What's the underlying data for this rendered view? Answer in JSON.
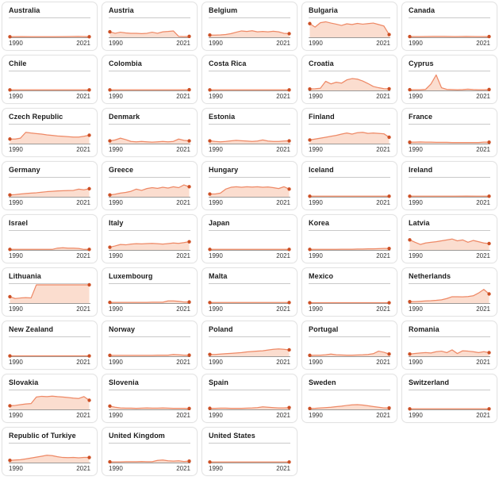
{
  "meta": {
    "x_start_label": "1990",
    "x_end_label": "2021"
  },
  "style": {
    "line_color": "#ee8966",
    "fill_color": "#fbddcf",
    "dot_color": "#cc4f24",
    "axis_color": "#8f8f8f",
    "rule_color": "#c9c9c9",
    "card_border": "#e3e3e3"
  },
  "chart_data": [
    {
      "type": "area",
      "country": "Australia",
      "x_range": [
        1990,
        2021
      ],
      "ylim": [
        0,
        1
      ],
      "values": [
        0.03,
        0.04,
        0.03,
        0.03,
        0.03,
        0.04,
        0.05,
        0.03
      ]
    },
    {
      "type": "area",
      "country": "Austria",
      "x_range": [
        1990,
        2021
      ],
      "ylim": [
        0,
        1
      ],
      "values": [
        0.3,
        0.22,
        0.28,
        0.24,
        0.22,
        0.22,
        0.2,
        0.22,
        0.28,
        0.22,
        0.3,
        0.32,
        0.35,
        0.05,
        0.04,
        0.05
      ]
    },
    {
      "type": "area",
      "country": "Belgium",
      "x_range": [
        1990,
        2021
      ],
      "ylim": [
        0,
        1
      ],
      "values": [
        0.12,
        0.12,
        0.13,
        0.15,
        0.2,
        0.28,
        0.35,
        0.32,
        0.36,
        0.3,
        0.32,
        0.3,
        0.33,
        0.3,
        0.22,
        0.2
      ]
    },
    {
      "type": "area",
      "country": "Bulgaria",
      "x_range": [
        1990,
        2021
      ],
      "ylim": [
        0,
        1
      ],
      "values": [
        0.75,
        0.56,
        0.8,
        0.85,
        0.78,
        0.72,
        0.65,
        0.74,
        0.7,
        0.76,
        0.72,
        0.75,
        0.78,
        0.7,
        0.62,
        0.15
      ]
    },
    {
      "type": "area",
      "country": "Canada",
      "x_range": [
        1990,
        2021
      ],
      "ylim": [
        0,
        1
      ],
      "values": [
        0.04,
        0.04,
        0.05,
        0.05,
        0.04,
        0.05,
        0.04,
        0.04
      ]
    },
    {
      "type": "area",
      "country": "Chile",
      "x_range": [
        1990,
        2021
      ],
      "ylim": [
        0,
        1
      ],
      "values": [
        0.03,
        0.03,
        0.03,
        0.03,
        0.03,
        0.03,
        0.03,
        0.03
      ]
    },
    {
      "type": "area",
      "country": "Colombia",
      "x_range": [
        1990,
        2021
      ],
      "ylim": [
        0,
        1
      ],
      "values": [
        0.03,
        0.03,
        0.03,
        0.03,
        0.03,
        0.03,
        0.03,
        0.04
      ]
    },
    {
      "type": "area",
      "country": "Costa Rica",
      "x_range": [
        1990,
        2021
      ],
      "ylim": [
        0,
        1
      ],
      "values": [
        0.03,
        0.03,
        0.03,
        0.03,
        0.03,
        0.03,
        0.03,
        0.03
      ]
    },
    {
      "type": "area",
      "country": "Croatia",
      "x_range": [
        1990,
        2021
      ],
      "ylim": [
        0,
        1
      ],
      "values": [
        0.08,
        0.09,
        0.12,
        0.5,
        0.36,
        0.45,
        0.4,
        0.58,
        0.65,
        0.62,
        0.52,
        0.38,
        0.22,
        0.15,
        0.1,
        0.09
      ]
    },
    {
      "type": "area",
      "country": "Cyprus",
      "x_range": [
        1990,
        2021
      ],
      "ylim": [
        0,
        1
      ],
      "values": [
        0.04,
        0.04,
        0.04,
        0.06,
        0.35,
        0.85,
        0.15,
        0.06,
        0.05,
        0.04,
        0.05,
        0.07,
        0.05,
        0.04,
        0.04,
        0.05
      ]
    },
    {
      "type": "area",
      "country": "Czech Republic",
      "x_range": [
        1990,
        2021
      ],
      "ylim": [
        0,
        1
      ],
      "values": [
        0.25,
        0.25,
        0.3,
        0.62,
        0.58,
        0.55,
        0.52,
        0.48,
        0.45,
        0.42,
        0.4,
        0.38,
        0.36,
        0.36,
        0.4,
        0.46
      ]
    },
    {
      "type": "area",
      "country": "Denmark",
      "x_range": [
        1990,
        2021
      ],
      "ylim": [
        0,
        1
      ],
      "values": [
        0.15,
        0.2,
        0.3,
        0.22,
        0.12,
        0.1,
        0.12,
        0.1,
        0.08,
        0.1,
        0.12,
        0.1,
        0.12,
        0.25,
        0.18,
        0.15
      ]
    },
    {
      "type": "area",
      "country": "Estonia",
      "x_range": [
        1990,
        2021
      ],
      "ylim": [
        0,
        1
      ],
      "values": [
        0.15,
        0.12,
        0.1,
        0.12,
        0.15,
        0.18,
        0.16,
        0.14,
        0.12,
        0.14,
        0.2,
        0.14,
        0.12,
        0.12,
        0.14,
        0.15
      ]
    },
    {
      "type": "area",
      "country": "Finland",
      "x_range": [
        1990,
        2021
      ],
      "ylim": [
        0,
        1
      ],
      "values": [
        0.2,
        0.25,
        0.3,
        0.35,
        0.4,
        0.45,
        0.52,
        0.58,
        0.52,
        0.6,
        0.62,
        0.56,
        0.58,
        0.56,
        0.54,
        0.35
      ]
    },
    {
      "type": "area",
      "country": "France",
      "x_range": [
        1990,
        2021
      ],
      "ylim": [
        0,
        1
      ],
      "values": [
        0.08,
        0.08,
        0.09,
        0.08,
        0.08,
        0.07,
        0.07,
        0.07,
        0.06,
        0.06,
        0.06,
        0.06,
        0.06,
        0.06,
        0.08,
        0.08
      ]
    },
    {
      "type": "area",
      "country": "Germany",
      "x_range": [
        1990,
        2021
      ],
      "ylim": [
        0,
        1
      ],
      "values": [
        0.1,
        0.12,
        0.15,
        0.18,
        0.2,
        0.22,
        0.25,
        0.28,
        0.3,
        0.32,
        0.33,
        0.34,
        0.35,
        0.42,
        0.38,
        0.44
      ]
    },
    {
      "type": "area",
      "country": "Greece",
      "x_range": [
        1990,
        2021
      ],
      "ylim": [
        0,
        1
      ],
      "values": [
        0.1,
        0.14,
        0.2,
        0.24,
        0.3,
        0.42,
        0.35,
        0.45,
        0.5,
        0.46,
        0.52,
        0.48,
        0.55,
        0.5,
        0.65,
        0.55
      ]
    },
    {
      "type": "area",
      "country": "Hungary",
      "x_range": [
        1990,
        2021
      ],
      "ylim": [
        0,
        1
      ],
      "values": [
        0.15,
        0.15,
        0.2,
        0.42,
        0.52,
        0.55,
        0.52,
        0.55,
        0.53,
        0.55,
        0.52,
        0.54,
        0.5,
        0.45,
        0.55,
        0.42
      ]
    },
    {
      "type": "area",
      "country": "Iceland",
      "x_range": [
        1990,
        2021
      ],
      "ylim": [
        0,
        1
      ],
      "values": [
        0.03,
        0.03,
        0.03,
        0.03,
        0.03,
        0.03,
        0.03,
        0.03
      ]
    },
    {
      "type": "area",
      "country": "Ireland",
      "x_range": [
        1990,
        2021
      ],
      "ylim": [
        0,
        1
      ],
      "values": [
        0.03,
        0.03,
        0.03,
        0.03,
        0.03,
        0.04,
        0.03,
        0.03
      ]
    },
    {
      "type": "area",
      "country": "Israel",
      "x_range": [
        1990,
        2021
      ],
      "ylim": [
        0,
        1
      ],
      "values": [
        0.03,
        0.03,
        0.03,
        0.03,
        0.03,
        0.03,
        0.03,
        0.03,
        0.03,
        0.1,
        0.12,
        0.1,
        0.1,
        0.08,
        0.03,
        0.03
      ]
    },
    {
      "type": "area",
      "country": "Italy",
      "x_range": [
        1990,
        2021
      ],
      "ylim": [
        0,
        1
      ],
      "values": [
        0.15,
        0.22,
        0.3,
        0.28,
        0.32,
        0.34,
        0.33,
        0.35,
        0.36,
        0.34,
        0.32,
        0.35,
        0.38,
        0.36,
        0.4,
        0.45
      ]
    },
    {
      "type": "area",
      "country": "Japan",
      "x_range": [
        1990,
        2021
      ],
      "ylim": [
        0,
        1
      ],
      "values": [
        0.03,
        0.03,
        0.03,
        0.03,
        0.03,
        0.03,
        0.03,
        0.03
      ]
    },
    {
      "type": "area",
      "country": "Korea",
      "x_range": [
        1990,
        2021
      ],
      "ylim": [
        0,
        1
      ],
      "values": [
        0.03,
        0.03,
        0.03,
        0.03,
        0.03,
        0.03,
        0.04,
        0.04,
        0.04,
        0.05,
        0.05,
        0.06,
        0.06,
        0.07,
        0.08,
        0.08
      ]
    },
    {
      "type": "area",
      "country": "Latvia",
      "x_range": [
        1990,
        2021
      ],
      "ylim": [
        0,
        1
      ],
      "values": [
        0.55,
        0.42,
        0.3,
        0.38,
        0.42,
        0.45,
        0.5,
        0.55,
        0.6,
        0.5,
        0.55,
        0.42,
        0.52,
        0.45,
        0.38,
        0.35
      ]
    },
    {
      "type": "area",
      "country": "Lithuania",
      "x_range": [
        1990,
        2021
      ],
      "ylim": [
        0,
        1
      ],
      "values": [
        0.35,
        0.25,
        0.28,
        0.3,
        0.28,
        1.0,
        1.0,
        1.0,
        1.0,
        1.0,
        1.0,
        1.0,
        1.0,
        1.0,
        1.0,
        1.0
      ]
    },
    {
      "type": "area",
      "country": "Luxembourg",
      "x_range": [
        1990,
        2021
      ],
      "ylim": [
        0,
        1
      ],
      "values": [
        0.04,
        0.04,
        0.04,
        0.04,
        0.04,
        0.04,
        0.04,
        0.04,
        0.05,
        0.05,
        0.05,
        0.12,
        0.12,
        0.1,
        0.06,
        0.06
      ]
    },
    {
      "type": "area",
      "country": "Malta",
      "x_range": [
        1990,
        2021
      ],
      "ylim": [
        0,
        1
      ],
      "values": [
        0.03,
        0.03,
        0.03,
        0.03,
        0.03,
        0.03,
        0.03,
        0.03
      ]
    },
    {
      "type": "area",
      "country": "Mexico",
      "x_range": [
        1990,
        2021
      ],
      "ylim": [
        0,
        1
      ],
      "values": [
        0.02,
        0.02,
        0.02,
        0.02,
        0.02,
        0.02,
        0.02,
        0.02
      ]
    },
    {
      "type": "area",
      "country": "Netherlands",
      "x_range": [
        1990,
        2021
      ],
      "ylim": [
        0,
        1
      ],
      "values": [
        0.08,
        0.08,
        0.1,
        0.12,
        0.13,
        0.15,
        0.18,
        0.25,
        0.35,
        0.35,
        0.34,
        0.36,
        0.4,
        0.55,
        0.75,
        0.5
      ]
    },
    {
      "type": "area",
      "country": "New Zealand",
      "x_range": [
        1990,
        2021
      ],
      "ylim": [
        0,
        1
      ],
      "values": [
        0.02,
        0.02,
        0.02,
        0.02,
        0.02,
        0.02,
        0.02,
        0.02
      ]
    },
    {
      "type": "area",
      "country": "Norway",
      "x_range": [
        1990,
        2021
      ],
      "ylim": [
        0,
        1
      ],
      "values": [
        0.05,
        0.05,
        0.05,
        0.05,
        0.05,
        0.05,
        0.05,
        0.05,
        0.05,
        0.06,
        0.06,
        0.06,
        0.1,
        0.08,
        0.06,
        0.06
      ]
    },
    {
      "type": "area",
      "country": "Poland",
      "x_range": [
        1990,
        2021
      ],
      "ylim": [
        0,
        1
      ],
      "values": [
        0.1,
        0.1,
        0.12,
        0.14,
        0.16,
        0.18,
        0.2,
        0.24,
        0.26,
        0.28,
        0.3,
        0.34,
        0.38,
        0.4,
        0.38,
        0.35
      ]
    },
    {
      "type": "area",
      "country": "Portugal",
      "x_range": [
        1990,
        2021
      ],
      "ylim": [
        0,
        1
      ],
      "values": [
        0.05,
        0.06,
        0.06,
        0.08,
        0.12,
        0.08,
        0.07,
        0.06,
        0.06,
        0.07,
        0.08,
        0.1,
        0.14,
        0.28,
        0.22,
        0.12
      ]
    },
    {
      "type": "area",
      "country": "Romania",
      "x_range": [
        1990,
        2021
      ],
      "ylim": [
        0,
        1
      ],
      "values": [
        0.12,
        0.15,
        0.18,
        0.2,
        0.18,
        0.25,
        0.28,
        0.2,
        0.35,
        0.15,
        0.3,
        0.28,
        0.25,
        0.2,
        0.25,
        0.2
      ]
    },
    {
      "type": "area",
      "country": "Slovakia",
      "x_range": [
        1990,
        2021
      ],
      "ylim": [
        0,
        1
      ],
      "values": [
        0.2,
        0.22,
        0.26,
        0.3,
        0.32,
        0.68,
        0.72,
        0.7,
        0.73,
        0.7,
        0.68,
        0.65,
        0.62,
        0.6,
        0.7,
        0.5
      ]
    },
    {
      "type": "area",
      "country": "Slovenia",
      "x_range": [
        1990,
        2021
      ],
      "ylim": [
        0,
        1
      ],
      "values": [
        0.18,
        0.12,
        0.08,
        0.07,
        0.07,
        0.06,
        0.07,
        0.08,
        0.07,
        0.07,
        0.08,
        0.07,
        0.06,
        0.06,
        0.06,
        0.05
      ]
    },
    {
      "type": "area",
      "country": "Spain",
      "x_range": [
        1990,
        2021
      ],
      "ylim": [
        0,
        1
      ],
      "values": [
        0.06,
        0.06,
        0.07,
        0.07,
        0.06,
        0.06,
        0.06,
        0.07,
        0.08,
        0.1,
        0.14,
        0.12,
        0.1,
        0.08,
        0.08,
        0.1
      ]
    },
    {
      "type": "area",
      "country": "Sweden",
      "x_range": [
        1990,
        2021
      ],
      "ylim": [
        0,
        1
      ],
      "values": [
        0.05,
        0.06,
        0.08,
        0.1,
        0.12,
        0.15,
        0.18,
        0.22,
        0.25,
        0.26,
        0.24,
        0.2,
        0.16,
        0.12,
        0.08,
        0.08
      ]
    },
    {
      "type": "area",
      "country": "Switzerland",
      "x_range": [
        1990,
        2021
      ],
      "ylim": [
        0,
        1
      ],
      "values": [
        0.03,
        0.03,
        0.03,
        0.03,
        0.03,
        0.03,
        0.03,
        0.03
      ]
    },
    {
      "type": "area",
      "country": "Republic of Turkiye",
      "x_range": [
        1990,
        2021
      ],
      "ylim": [
        0,
        1
      ],
      "values": [
        0.12,
        0.14,
        0.16,
        0.2,
        0.25,
        0.3,
        0.35,
        0.4,
        0.38,
        0.32,
        0.28,
        0.27,
        0.28,
        0.26,
        0.28,
        0.28
      ]
    },
    {
      "type": "area",
      "country": "United Kingdom",
      "x_range": [
        1990,
        2021
      ],
      "ylim": [
        0,
        1
      ],
      "values": [
        0.04,
        0.04,
        0.04,
        0.05,
        0.05,
        0.05,
        0.06,
        0.05,
        0.05,
        0.12,
        0.14,
        0.1,
        0.08,
        0.1,
        0.06,
        0.08
      ]
    },
    {
      "type": "area",
      "country": "United States",
      "x_range": [
        1990,
        2021
      ],
      "ylim": [
        0,
        1
      ],
      "values": [
        0.03,
        0.03,
        0.03,
        0.03,
        0.03,
        0.03,
        0.03,
        0.03
      ]
    }
  ]
}
